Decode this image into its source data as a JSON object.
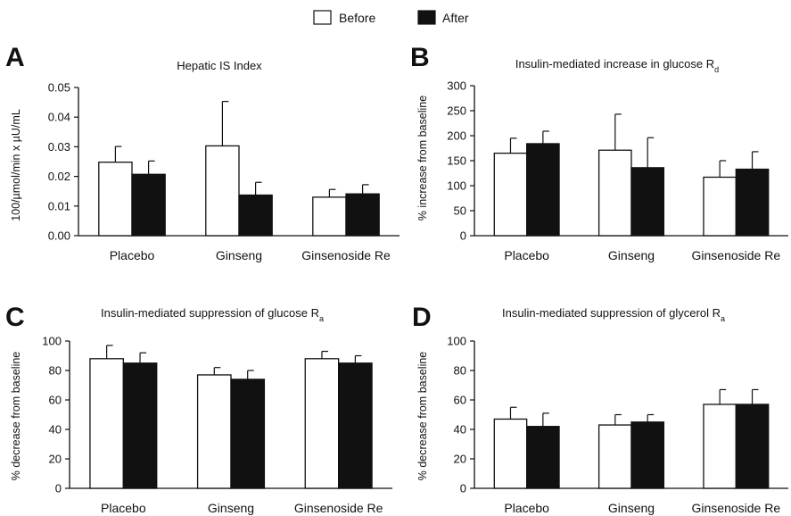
{
  "legend": [
    {
      "label": "Before",
      "color": "#ffffff"
    },
    {
      "label": "After",
      "color": "#111111"
    }
  ],
  "colors": {
    "before_fill": "#ffffff",
    "after_fill": "#111111",
    "stroke": "#111111"
  },
  "chart_data": [
    {
      "panel": "A",
      "type": "bar",
      "title": "Hepatic IS Index",
      "title_sub": "",
      "ylabel": "100/µmol/min x µU/mL",
      "categories": [
        "Placebo",
        "Ginseng",
        "Ginsenoside Re"
      ],
      "ylim": [
        0,
        0.05
      ],
      "yticks": [
        "0.00",
        "0.01",
        "0.02",
        "0.03",
        "0.04",
        "0.05"
      ],
      "series": [
        {
          "name": "Before",
          "values": [
            0.0248,
            0.0303,
            0.013
          ],
          "errors": [
            0.0053,
            0.015,
            0.0026
          ]
        },
        {
          "name": "After",
          "values": [
            0.0207,
            0.0137,
            0.0141
          ],
          "errors": [
            0.0045,
            0.0043,
            0.0031
          ]
        }
      ]
    },
    {
      "panel": "B",
      "type": "bar",
      "title": "Insulin-mediated increase in glucose R",
      "title_sub": "d",
      "ylabel": "% increase from baseline",
      "categories": [
        "Placebo",
        "Ginseng",
        "Ginsenoside Re"
      ],
      "ylim": [
        0,
        300
      ],
      "yticks": [
        "0",
        "50",
        "100",
        "150",
        "200",
        "250",
        "300"
      ],
      "series": [
        {
          "name": "Before",
          "values": [
            165,
            171,
            117
          ],
          "errors": [
            30,
            72,
            33
          ]
        },
        {
          "name": "After",
          "values": [
            184,
            136,
            133
          ],
          "errors": [
            25,
            60,
            35
          ]
        }
      ]
    },
    {
      "panel": "C",
      "type": "bar",
      "title": "Insulin-mediated suppression of glucose R",
      "title_sub": "a",
      "ylabel": "% decrease from baseline",
      "categories": [
        "Placebo",
        "Ginseng",
        "Ginsenoside Re"
      ],
      "ylim": [
        0,
        100
      ],
      "yticks": [
        "0",
        "20",
        "40",
        "60",
        "80",
        "100"
      ],
      "series": [
        {
          "name": "Before",
          "values": [
            88,
            77,
            88
          ],
          "errors": [
            9,
            5,
            5
          ]
        },
        {
          "name": "After",
          "values": [
            85,
            74,
            85
          ],
          "errors": [
            7,
            6,
            5
          ]
        }
      ]
    },
    {
      "panel": "D",
      "type": "bar",
      "title": "Insulin-mediated suppression of glycerol R",
      "title_sub": "a",
      "ylabel": "% decrease from baseline",
      "categories": [
        "Placebo",
        "Ginseng",
        "Ginsenoside Re"
      ],
      "ylim": [
        0,
        100
      ],
      "yticks": [
        "0",
        "20",
        "40",
        "60",
        "80",
        "100"
      ],
      "series": [
        {
          "name": "Before",
          "values": [
            47,
            43,
            57
          ],
          "errors": [
            8,
            7,
            10
          ]
        },
        {
          "name": "After",
          "values": [
            42,
            45,
            57
          ],
          "errors": [
            9,
            5,
            10
          ]
        }
      ]
    }
  ]
}
